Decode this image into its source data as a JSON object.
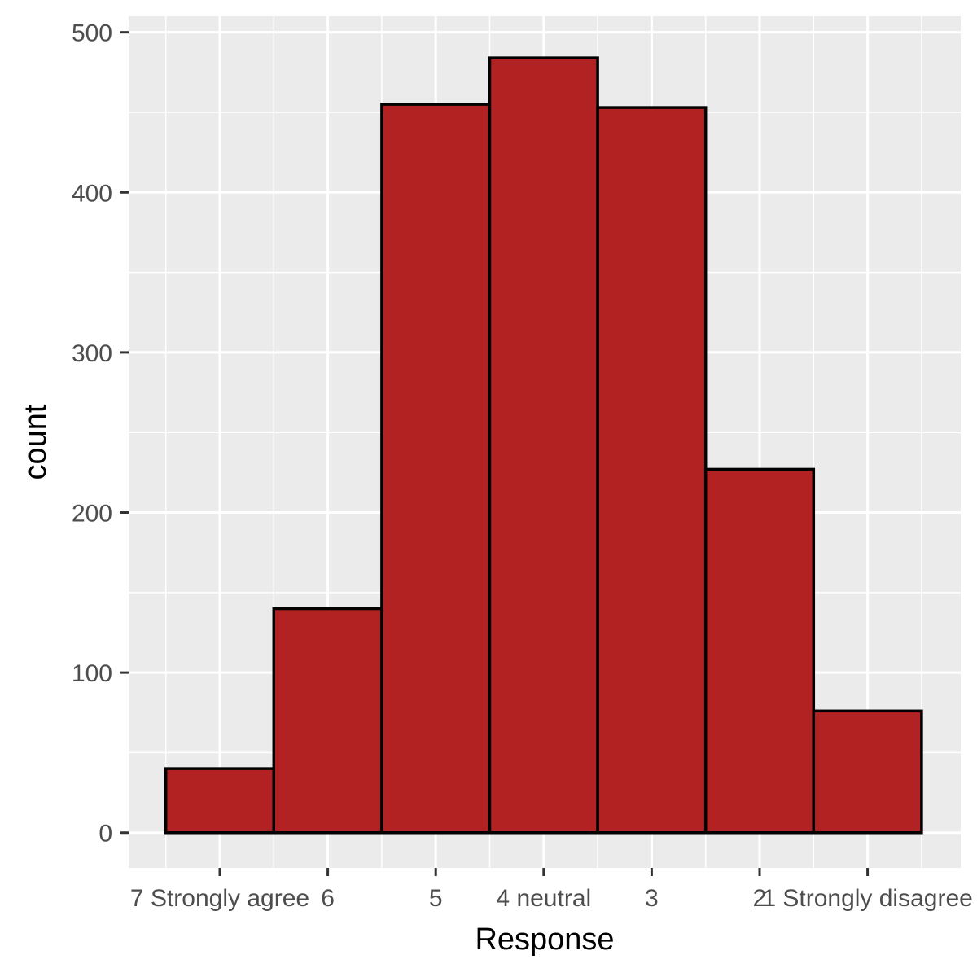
{
  "chart_data": {
    "type": "bar",
    "title": "",
    "xlabel": "Response",
    "ylabel": "count",
    "categories": [
      "7 Strongly agree",
      "6",
      "5",
      "4 neutral",
      "3",
      "2",
      "1 Strongly disagree"
    ],
    "values": [
      40,
      140,
      455,
      484,
      453,
      227,
      76
    ],
    "ylim": [
      -22,
      510
    ],
    "y_ticks": [
      0,
      100,
      200,
      300,
      400,
      500
    ],
    "grid": true,
    "legend": "none",
    "colors": {
      "bar_fill": "#B22222",
      "bar_stroke": "#000000",
      "panel_bg": "#EBEBEB",
      "grid": "#FFFFFF",
      "tick_label": "#4D4D4D"
    }
  }
}
